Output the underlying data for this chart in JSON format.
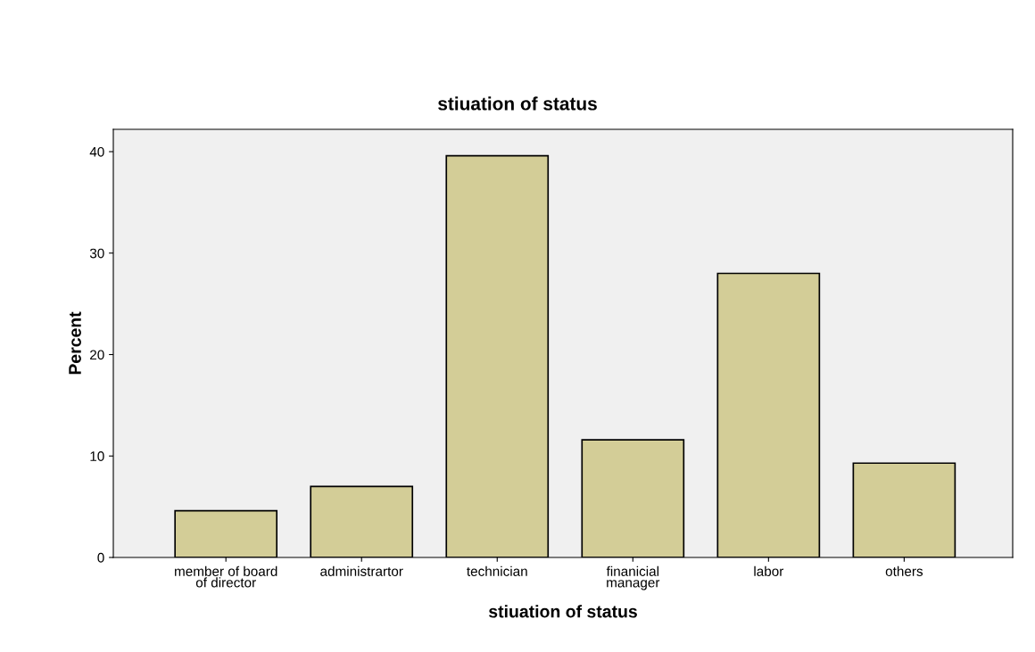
{
  "chart_data": {
    "type": "bar",
    "title": "stiuation of status",
    "xlabel": "stiuation of status",
    "ylabel": "Percent",
    "categories": [
      "member of board\nof director",
      "administrartor",
      "technician",
      "finanicial\nmanager",
      "labor",
      "others"
    ],
    "values": [
      4.6,
      7.0,
      39.6,
      11.6,
      28.0,
      9.3
    ],
    "color": "#d3cd97",
    "ylim": [
      0,
      42.2
    ],
    "yticks": [
      0,
      10,
      20,
      30,
      40
    ],
    "grid": false
  }
}
